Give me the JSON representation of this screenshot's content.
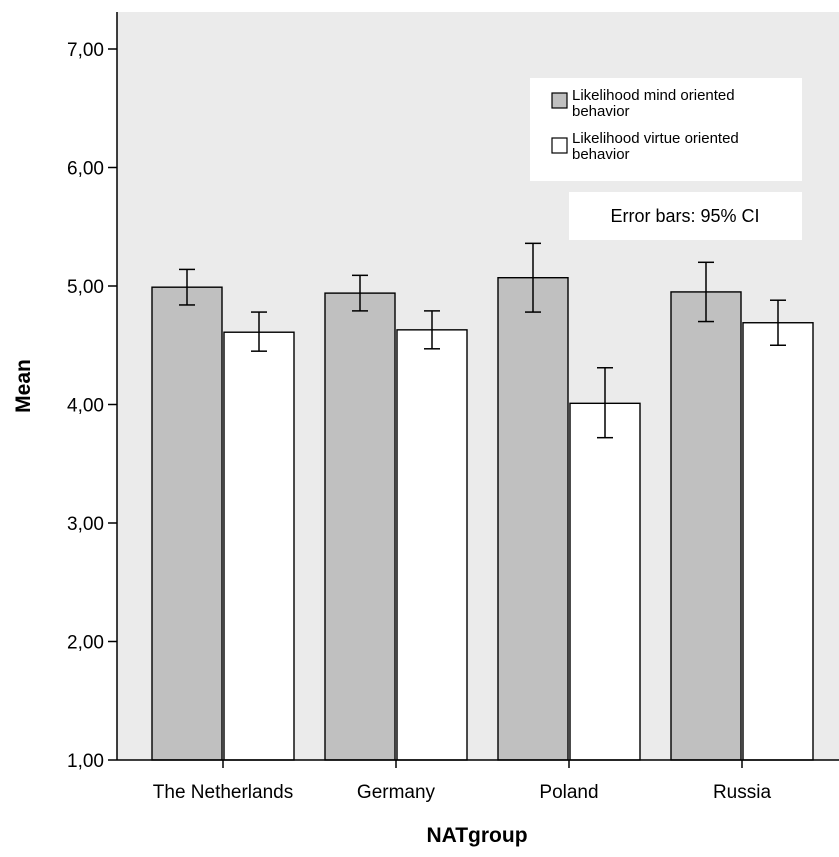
{
  "chart_data": {
    "type": "bar",
    "xlabel": "NATgroup",
    "ylabel": "Mean",
    "ylim": [
      1,
      7
    ],
    "yticks": [
      "1,00",
      "2,00",
      "3,00",
      "4,00",
      "5,00",
      "6,00",
      "7,00"
    ],
    "categories": [
      "The Netherlands",
      "Germany",
      "Poland",
      "Russia"
    ],
    "series": [
      {
        "name": "Likelihood mind oriented behavior",
        "legend_lines": [
          "Likelihood mind oriented",
          "behavior"
        ],
        "color": "#c0c0c0",
        "values": [
          4.99,
          4.94,
          5.07,
          4.95
        ],
        "ci_low": [
          4.84,
          4.79,
          4.78,
          4.7
        ],
        "ci_high": [
          5.14,
          5.09,
          5.36,
          5.2
        ]
      },
      {
        "name": "Likelihood virtue oriented behavior",
        "legend_lines": [
          "Likelihood virtue oriented",
          "behavior"
        ],
        "color": "#ffffff",
        "values": [
          4.61,
          4.63,
          4.01,
          4.69
        ],
        "ci_low": [
          4.45,
          4.47,
          3.72,
          4.5
        ],
        "ci_high": [
          4.78,
          4.79,
          4.31,
          4.88
        ]
      }
    ],
    "annotation": "Error bars: 95% CI",
    "grid": false,
    "legend_position": "top-right",
    "background_color": "#ebebeb"
  }
}
